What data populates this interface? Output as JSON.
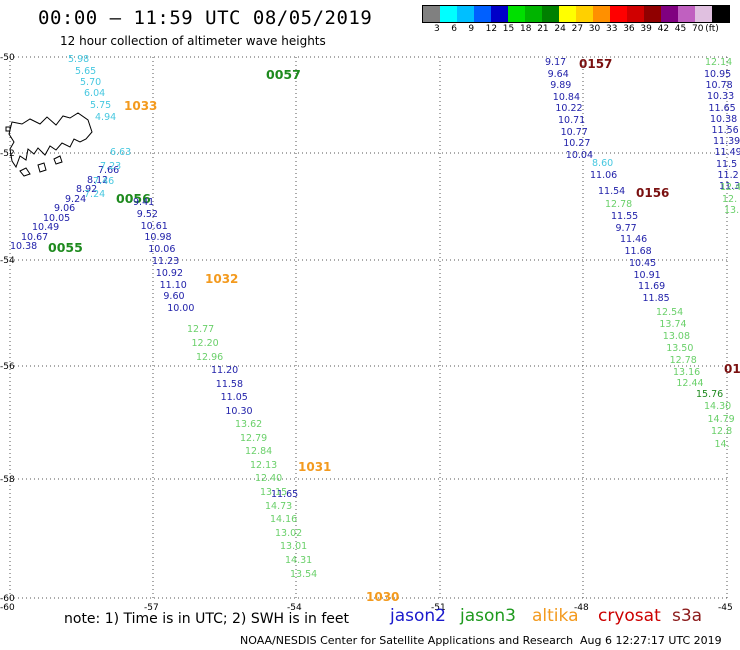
{
  "header": {
    "title": "00:00 – 11:59 UTC 08/05/2019",
    "subtitle": "12 hour collection of altimeter wave heights"
  },
  "colorbar": {
    "colors": [
      "#808080",
      "#00ffff",
      "#00bfff",
      "#0060ff",
      "#0000c8",
      "#00e000",
      "#00b400",
      "#008000",
      "#ffff00",
      "#ffd000",
      "#ff9000",
      "#ff0000",
      "#d00000",
      "#900000",
      "#800080",
      "#c060c0",
      "#e0c0e0",
      "#000000"
    ],
    "labels": [
      "3",
      "6",
      "9",
      "12",
      "15",
      "18",
      "21",
      "24",
      "27",
      "30",
      "33",
      "36",
      "39",
      "42",
      "45",
      "70",
      "(ft)"
    ]
  },
  "axes": {
    "lat_labels": [
      "-50",
      "-52",
      "-54",
      "-56",
      "-58",
      "-60"
    ],
    "lon_labels": [
      "-60",
      "-57",
      "-54",
      "-51",
      "-48",
      "-45"
    ]
  },
  "tracks": [
    {
      "satellite": "jason2",
      "color": "#2222aa",
      "time_label": "",
      "values": [
        "10.38",
        "10.67",
        "10.49",
        "10.05",
        "9.06",
        "9.24",
        "8.92",
        "8.12",
        "7.66"
      ]
    },
    {
      "satellite": "altika",
      "color": "#47c8e0",
      "time_label": "",
      "values": [
        "5.98",
        "5.65",
        "5.70",
        "6.04",
        "5.75",
        "4.94",
        "6.63",
        "7.23",
        "7.46",
        "7.24"
      ]
    },
    {
      "satellite": "jason3",
      "color": "#1e8a1e",
      "time_label": "0057",
      "values": []
    },
    {
      "satellite": "jason3",
      "color": "#1e8a1e",
      "time_label": "0056",
      "values": []
    },
    {
      "satellite": "jason3",
      "color": "#1e8a1e",
      "time_label": "0055",
      "values": []
    },
    {
      "satellite": "altika",
      "color": "#f39a1e",
      "time_label": "1033",
      "values": []
    },
    {
      "satellite": "jason2",
      "color": "#2222aa",
      "time_label": "",
      "values": [
        "9.41",
        "9.52",
        "10.61",
        "10.98",
        "10.06",
        "11.23",
        "10.92",
        "11.10",
        "9.60",
        "10.00"
      ]
    },
    {
      "satellite": "altika",
      "color": "#f39a1e",
      "time_label": "1032",
      "values": []
    },
    {
      "satellite": "saral",
      "color": "#6ad06a",
      "time_label": "",
      "values": [
        "12.77",
        "12.20",
        "12.96"
      ]
    },
    {
      "satellite": "jason2",
      "color": "#2222aa",
      "time_label": "",
      "values": [
        "11.20",
        "11.58",
        "11.05",
        "10.30"
      ]
    },
    {
      "satellite": "saral",
      "color": "#6ad06a",
      "time_label": "",
      "values": [
        "13.62",
        "12.79",
        "12.84",
        "12.13",
        "12.40",
        "13.15",
        "14.73",
        "14.16",
        "13.02",
        "13.01",
        "14.31",
        "13.54"
      ]
    },
    {
      "satellite": "jason2",
      "color": "#2222aa",
      "time_label": "",
      "values": [
        "11.65"
      ]
    },
    {
      "satellite": "altika",
      "color": "#f39a1e",
      "time_label": "1031",
      "values": []
    },
    {
      "satellite": "altika",
      "color": "#f39a1e",
      "time_label": "1030",
      "values": []
    },
    {
      "satellite": "jason2",
      "color": "#2222aa",
      "time_label": "",
      "values": [
        "9.17",
        "9.64",
        "9.89",
        "10.84",
        "10.22",
        "10.71",
        "10.77",
        "10.27",
        "10.04"
      ]
    },
    {
      "satellite": "altika",
      "color": "#47c8e0",
      "time_label": "",
      "values": [
        "8.60"
      ]
    },
    {
      "satellite": "jason2",
      "color": "#2222aa",
      "time_label": "",
      "values": [
        "11.06",
        "11.54"
      ]
    },
    {
      "satellite": "cryosat",
      "color": "#7a1010",
      "time_label": "0157",
      "values": []
    },
    {
      "satellite": "cryosat",
      "color": "#7a1010",
      "time_label": "0156",
      "values": []
    },
    {
      "satellite": "saral",
      "color": "#6ad06a",
      "time_label": "",
      "values": [
        "12.78"
      ]
    },
    {
      "satellite": "jason2",
      "color": "#2222aa",
      "time_label": "",
      "values": [
        "11.55",
        "9.77",
        "11.46",
        "11.68",
        "10.45",
        "10.91",
        "11.69",
        "11.85"
      ]
    },
    {
      "satellite": "saral",
      "color": "#6ad06a",
      "time_label": "",
      "values": [
        "12.54",
        "13.74",
        "13.08",
        "13.50",
        "12.78",
        "13.16",
        "12.44"
      ]
    },
    {
      "satellite": "jason3",
      "color": "#1e8a1e",
      "time_label": "",
      "values": [
        "15.76"
      ]
    },
    {
      "satellite": "saral",
      "color": "#6ad06a",
      "time_label": "",
      "values": [
        "14.30",
        "14.79",
        "12.8",
        "14."
      ]
    },
    {
      "satellite": "cryosat",
      "color": "#7a1010",
      "time_label": "01",
      "values": []
    },
    {
      "satellite": "saral",
      "color": "#6ad06a",
      "time_label": "",
      "values": [
        "12.14"
      ]
    },
    {
      "satellite": "jason2",
      "color": "#2222aa",
      "time_label": "",
      "values": [
        "10.95",
        "10.78",
        "10.33",
        "11.65",
        "10.38",
        "11.56",
        "11.39",
        "11.49",
        "11.5",
        "11.2",
        "11.3"
      ]
    },
    {
      "satellite": "saral",
      "color": "#6ad06a",
      "time_label": "",
      "values": [
        "12.4",
        "12.",
        "13."
      ]
    }
  ],
  "legend": {
    "note": "note:  1) Time is in UTC;  2) SWH is in feet",
    "items": [
      {
        "label": "jason2",
        "color": "#1a1acc"
      },
      {
        "label": "jason3",
        "color": "#1e9a1e"
      },
      {
        "label": "altika",
        "color": "#f39a1e"
      },
      {
        "label": "cryosat",
        "color": "#cc0000"
      },
      {
        "label": "s3a",
        "color": "#8b1a1a"
      }
    ]
  },
  "footer": {
    "credit": "NOAA/NESDIS Center for Satellite Applications and Research",
    "timestamp": "Aug  6 12:27:17 UTC 2019"
  }
}
